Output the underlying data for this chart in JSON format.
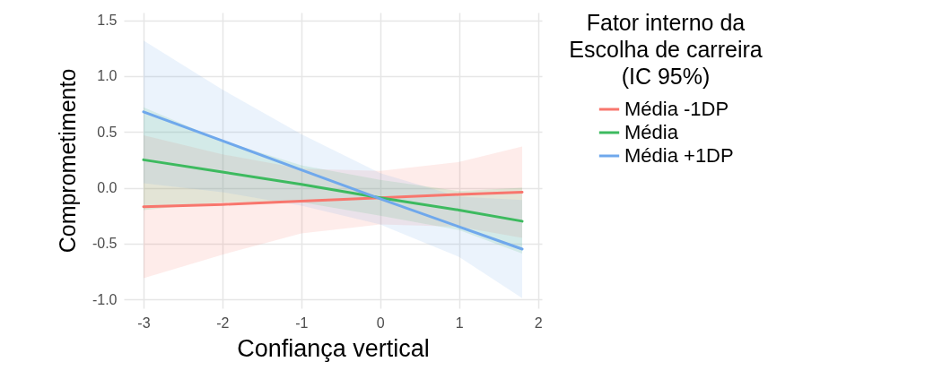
{
  "chart_data": {
    "type": "line",
    "xlabel": "Confiança vertical",
    "ylabel": "Comprometimento",
    "legend_title": "Fator interno da\nEscolha de carreira\n(IC 95%)",
    "legend": "right",
    "grid": true,
    "line_style": "solid",
    "x": [
      -3,
      -2,
      -1,
      0,
      1,
      1.8
    ],
    "xlim": [
      -3.25,
      2.05
    ],
    "ylim": [
      -1.08,
      1.57
    ],
    "xticks": [
      -3,
      -2,
      -1,
      0,
      1,
      2
    ],
    "yticks": [
      {
        "value": -1,
        "label": "-1.0"
      },
      {
        "value": -0.5,
        "label": "-0.5"
      },
      {
        "value": 0,
        "label": "0.0"
      },
      {
        "value": 0.5,
        "label": "0.5"
      },
      {
        "value": 1,
        "label": "1.0"
      },
      {
        "value": 1.5,
        "label": "1.5"
      }
    ],
    "series": [
      {
        "name": "Média -1DP",
        "color": "#f8766d",
        "values": [
          -0.17,
          -0.15,
          -0.12,
          -0.09,
          -0.06,
          -0.04
        ],
        "lower": [
          -0.81,
          -0.6,
          -0.41,
          -0.33,
          -0.35,
          -0.45
        ],
        "upper": [
          0.47,
          0.3,
          0.17,
          0.15,
          0.23,
          0.37
        ]
      },
      {
        "name": "Média",
        "color": "#3dba5f",
        "values": [
          0.25,
          0.14,
          0.03,
          -0.09,
          -0.2,
          -0.3
        ],
        "lower": [
          -0.2,
          -0.13,
          -0.13,
          -0.25,
          -0.38,
          -0.59
        ],
        "upper": [
          0.72,
          0.42,
          0.2,
          0.07,
          -0.03,
          0
        ]
      },
      {
        "name": "Média +1DP",
        "color": "#6fa8ec",
        "values": [
          0.68,
          0.42,
          0.16,
          -0.1,
          -0.35,
          -0.55
        ],
        "lower": [
          0.04,
          -0.04,
          -0.16,
          -0.33,
          -0.62,
          -0.99
        ],
        "upper": [
          1.32,
          0.88,
          0.48,
          0.13,
          -0.08,
          -0.11
        ]
      }
    ]
  }
}
